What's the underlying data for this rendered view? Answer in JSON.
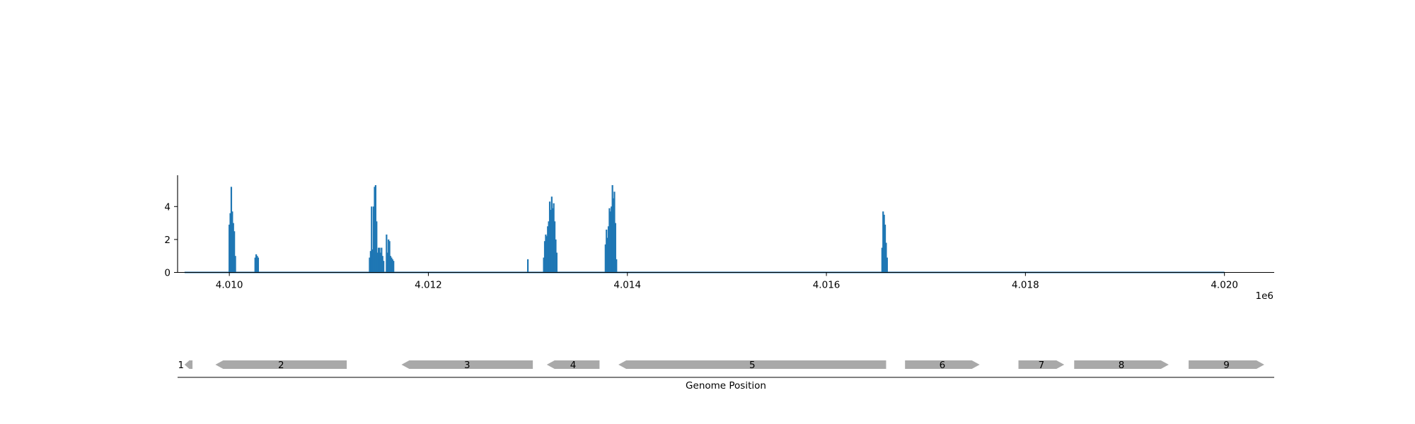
{
  "chart_data": [
    {
      "type": "area",
      "title": "",
      "xlabel": "",
      "ylabel": "",
      "x_offset_label": "1e6",
      "xlim": [
        4.00948,
        4.0205
      ],
      "ylim": [
        0,
        5.9
      ],
      "x_ticks": [
        4.01,
        4.012,
        4.014,
        4.016,
        4.018,
        4.02
      ],
      "x_tick_labels": [
        "4.010",
        "4.012",
        "4.014",
        "4.016",
        "4.018",
        "4.020"
      ],
      "y_ticks": [
        0,
        2,
        4
      ],
      "y_tick_labels": [
        "0",
        "2",
        "4"
      ],
      "grid": false,
      "baseline": [
        4.00955,
        4.02
      ],
      "series": [
        {
          "color": "#1f77b4",
          "peaks": [
            {
              "x": 4.01,
              "y": 2.9
            },
            {
              "x": 4.01001,
              "y": 3.6
            },
            {
              "x": 4.01002,
              "y": 5.2
            },
            {
              "x": 4.01003,
              "y": 3.7
            },
            {
              "x": 4.01004,
              "y": 3.0
            },
            {
              "x": 4.01005,
              "y": 2.5
            },
            {
              "x": 4.01006,
              "y": 1.0
            },
            {
              "x": 4.01026,
              "y": 0.9
            },
            {
              "x": 4.01027,
              "y": 1.1
            },
            {
              "x": 4.01028,
              "y": 1.0
            },
            {
              "x": 4.01029,
              "y": 0.9
            },
            {
              "x": 4.01141,
              "y": 0.9
            },
            {
              "x": 4.01142,
              "y": 1.3
            },
            {
              "x": 4.01143,
              "y": 4.0
            },
            {
              "x": 4.01144,
              "y": 1.4
            },
            {
              "x": 4.01145,
              "y": 4.0
            },
            {
              "x": 4.01146,
              "y": 5.2
            },
            {
              "x": 4.01147,
              "y": 5.3
            },
            {
              "x": 4.01148,
              "y": 3.1
            },
            {
              "x": 4.01149,
              "y": 1.2
            },
            {
              "x": 4.0115,
              "y": 1.5
            },
            {
              "x": 4.01151,
              "y": 1.5
            },
            {
              "x": 4.01152,
              "y": 1.2
            },
            {
              "x": 4.01153,
              "y": 1.5
            },
            {
              "x": 4.01154,
              "y": 1.0
            },
            {
              "x": 4.01155,
              "y": 0.7
            },
            {
              "x": 4.01158,
              "y": 2.3
            },
            {
              "x": 4.01159,
              "y": 1.2
            },
            {
              "x": 4.0116,
              "y": 2.0
            },
            {
              "x": 4.01161,
              "y": 1.9
            },
            {
              "x": 4.01162,
              "y": 1.0
            },
            {
              "x": 4.01163,
              "y": 0.9
            },
            {
              "x": 4.01164,
              "y": 0.8
            },
            {
              "x": 4.01165,
              "y": 0.7
            },
            {
              "x": 4.013,
              "y": 0.8
            },
            {
              "x": 4.01316,
              "y": 0.9
            },
            {
              "x": 4.01317,
              "y": 1.9
            },
            {
              "x": 4.01318,
              "y": 2.3
            },
            {
              "x": 4.01319,
              "y": 2.2
            },
            {
              "x": 4.0132,
              "y": 2.8
            },
            {
              "x": 4.01321,
              "y": 3.1
            },
            {
              "x": 4.01322,
              "y": 4.3
            },
            {
              "x": 4.01323,
              "y": 3.8
            },
            {
              "x": 4.01324,
              "y": 4.6
            },
            {
              "x": 4.01325,
              "y": 3.9
            },
            {
              "x": 4.01326,
              "y": 4.2
            },
            {
              "x": 4.01327,
              "y": 3.1
            },
            {
              "x": 4.01328,
              "y": 2.0
            },
            {
              "x": 4.01329,
              "y": 1.2
            },
            {
              "x": 4.01378,
              "y": 1.7
            },
            {
              "x": 4.01379,
              "y": 2.6
            },
            {
              "x": 4.0138,
              "y": 2.1
            },
            {
              "x": 4.01381,
              "y": 2.8
            },
            {
              "x": 4.01382,
              "y": 3.9
            },
            {
              "x": 4.01383,
              "y": 3.7
            },
            {
              "x": 4.01384,
              "y": 4.0
            },
            {
              "x": 4.01385,
              "y": 5.3
            },
            {
              "x": 4.01386,
              "y": 4.5
            },
            {
              "x": 4.01387,
              "y": 4.9
            },
            {
              "x": 4.01388,
              "y": 3.0
            },
            {
              "x": 4.01389,
              "y": 0.8
            },
            {
              "x": 4.01656,
              "y": 1.5
            },
            {
              "x": 4.01657,
              "y": 3.7
            },
            {
              "x": 4.01658,
              "y": 3.5
            },
            {
              "x": 4.01659,
              "y": 2.9
            },
            {
              "x": 4.0166,
              "y": 1.8
            },
            {
              "x": 4.01661,
              "y": 0.9
            }
          ]
        }
      ]
    },
    {
      "type": "gene-track",
      "xlabel": "Genome Position",
      "color": "#a9a9a9",
      "features": [
        {
          "label": "1",
          "start": 4.00955,
          "end": 4.00963,
          "strand": -1
        },
        {
          "label": "2",
          "start": 4.00986,
          "end": 4.01118,
          "strand": -1
        },
        {
          "label": "3",
          "start": 4.01173,
          "end": 4.01305,
          "strand": -1
        },
        {
          "label": "4",
          "start": 4.01319,
          "end": 4.01372,
          "strand": -1
        },
        {
          "label": "5",
          "start": 4.01391,
          "end": 4.0166,
          "strand": -1
        },
        {
          "label": "6",
          "start": 4.01679,
          "end": 4.01754,
          "strand": 1
        },
        {
          "label": "7",
          "start": 4.01793,
          "end": 4.01839,
          "strand": 1
        },
        {
          "label": "8",
          "start": 4.01849,
          "end": 4.01944,
          "strand": 1
        },
        {
          "label": "9",
          "start": 4.01964,
          "end": 4.0204,
          "strand": 1
        }
      ]
    }
  ]
}
